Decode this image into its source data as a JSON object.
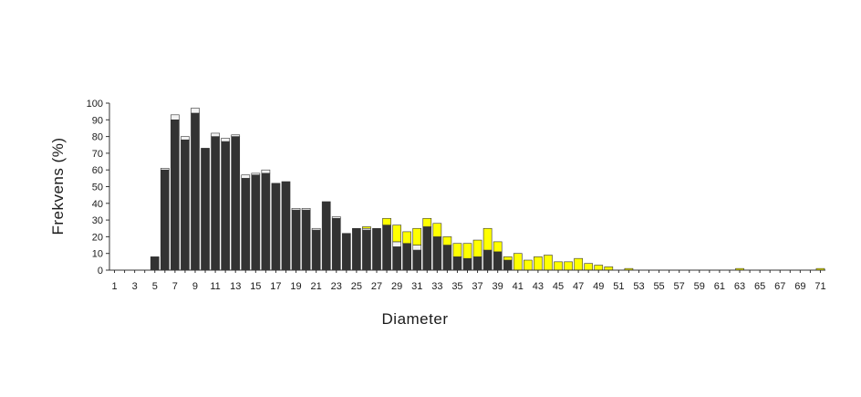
{
  "chart_data": {
    "type": "bar",
    "stacked": true,
    "xlabel": "Diameter",
    "ylabel": "Frekvens (%)",
    "ylim": [
      0,
      100
    ],
    "yticks": [
      0,
      10,
      20,
      30,
      40,
      50,
      60,
      70,
      80,
      90,
      100
    ],
    "categories": [
      1,
      2,
      3,
      4,
      5,
      6,
      7,
      8,
      9,
      10,
      11,
      12,
      13,
      14,
      15,
      16,
      17,
      18,
      19,
      20,
      21,
      22,
      23,
      24,
      25,
      26,
      27,
      28,
      29,
      30,
      31,
      32,
      33,
      34,
      35,
      36,
      37,
      38,
      39,
      40,
      41,
      42,
      43,
      44,
      45,
      46,
      47,
      48,
      49,
      50,
      51,
      52,
      53,
      54,
      55,
      56,
      57,
      58,
      59,
      60,
      61,
      62,
      63,
      64,
      65,
      66,
      67,
      68,
      69,
      70,
      71
    ],
    "xtick_labels": [
      "1",
      "3",
      "5",
      "7",
      "9",
      "11",
      "13",
      "15",
      "17",
      "19",
      "21",
      "23",
      "25",
      "27",
      "29",
      "31",
      "33",
      "35",
      "37",
      "39",
      "41",
      "43",
      "45",
      "47",
      "49",
      "51",
      "53",
      "55",
      "57",
      "59",
      "61",
      "63",
      "65",
      "67",
      "69",
      "71"
    ],
    "grid": false,
    "legend": "none",
    "series": [
      {
        "color": "#333333",
        "values": [
          0,
          0,
          0,
          0,
          8,
          60,
          90,
          78,
          94,
          73,
          80,
          77,
          80,
          55,
          57,
          58,
          52,
          53,
          36,
          36,
          24,
          41,
          31,
          22,
          25,
          24,
          25,
          27,
          14,
          16,
          12,
          26,
          20,
          15,
          8,
          7,
          8,
          12,
          11,
          6,
          0,
          0,
          0,
          0,
          0,
          0,
          0,
          0,
          0,
          0,
          0,
          0,
          0,
          0,
          0,
          0,
          0,
          0,
          0,
          0,
          0,
          0,
          0,
          0,
          0,
          0,
          0,
          0,
          0,
          0,
          0
        ]
      },
      {
        "color": "#f2f2f2",
        "values": [
          0,
          0,
          0,
          0,
          0,
          1,
          3,
          2,
          3,
          0,
          2,
          2,
          1,
          2,
          1,
          2,
          0,
          0,
          1,
          1,
          1,
          0,
          1,
          0,
          0,
          1,
          0,
          0,
          3,
          0,
          3,
          0,
          0,
          0,
          0,
          0,
          0,
          0,
          0,
          0,
          0,
          0,
          0,
          0,
          0,
          0,
          0,
          0,
          0,
          0,
          0,
          0,
          0,
          0,
          0,
          0,
          0,
          0,
          0,
          0,
          0,
          0,
          0,
          0,
          0,
          0,
          0,
          0,
          0,
          0,
          0
        ]
      },
      {
        "color": "#ffff00",
        "values": [
          0,
          0,
          0,
          0,
          0,
          0,
          0,
          0,
          0,
          0,
          0,
          0,
          0,
          0,
          0,
          0,
          0,
          0,
          0,
          0,
          0,
          0,
          0,
          0,
          0,
          1,
          0,
          4,
          10,
          7,
          10,
          5,
          8,
          5,
          8,
          9,
          10,
          13,
          6,
          2,
          10,
          6,
          8,
          9,
          5,
          5,
          7,
          4,
          3,
          2,
          0,
          1,
          0,
          0,
          0,
          0,
          0,
          0,
          0,
          0,
          0,
          0,
          1,
          0,
          0,
          0,
          0,
          0,
          0,
          0,
          1
        ]
      }
    ]
  }
}
